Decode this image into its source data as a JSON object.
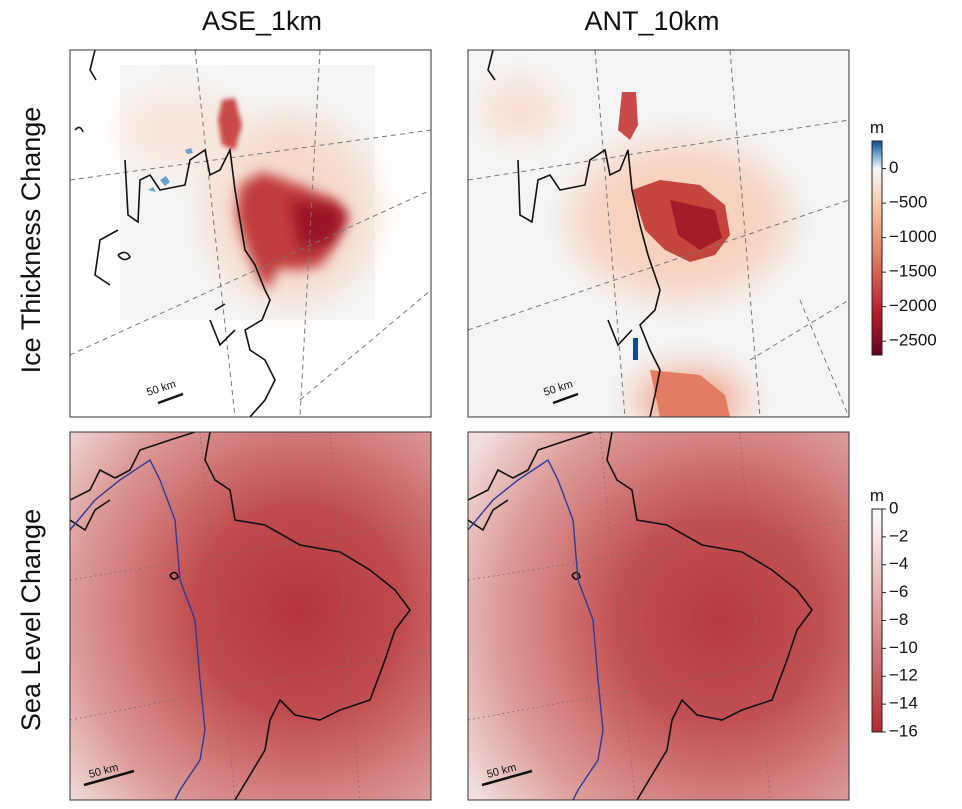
{
  "columns": [
    "ASE_1km",
    "ANT_10km"
  ],
  "rows": [
    "Ice Thickness Change",
    "Sea Level Change"
  ],
  "scale_bar_label": "50 km",
  "colorbars": [
    {
      "unit": "m",
      "lim": [
        -2700,
        400
      ],
      "ticks": [
        0,
        {
          "value": -500,
          "label": "−500"
        },
        {
          "value": -1000,
          "label": "−1000"
        },
        {
          "value": -1500,
          "label": "−1500"
        },
        {
          "value": -2000,
          "label": "−2000"
        },
        {
          "value": -2500,
          "label": "−2500"
        }
      ]
    },
    {
      "unit": "m",
      "lim": [
        -16,
        0
      ],
      "ticks": [
        0,
        {
          "value": -2,
          "label": "−2"
        },
        {
          "value": -4,
          "label": "−4"
        },
        {
          "value": -6,
          "label": "−6"
        },
        {
          "value": -8,
          "label": "−8"
        },
        {
          "value": -10,
          "label": "−10"
        },
        {
          "value": -12,
          "label": "−12"
        },
        {
          "value": -14,
          "label": "−14"
        },
        {
          "value": -16,
          "label": "−16"
        }
      ]
    }
  ]
}
